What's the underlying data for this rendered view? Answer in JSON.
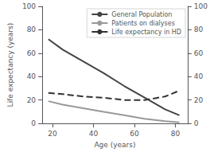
{
  "chart_data": {
    "type": "line",
    "x": [
      18,
      25,
      35,
      45,
      55,
      65,
      75,
      82
    ],
    "series": [
      {
        "name": "General Population",
        "color": "#444444",
        "line_style": "solid",
        "values": [
          72,
          63,
          53,
          43,
          32,
          22,
          12,
          7
        ]
      },
      {
        "name": "Patients on dialyses",
        "color": "#999999",
        "line_style": "solid",
        "values": [
          19,
          16,
          13,
          10,
          7,
          4,
          2,
          1
        ]
      },
      {
        "name": "Life expectancy in HD",
        "color": "#333333",
        "line_style": "dashed",
        "values": [
          26,
          25,
          23,
          22,
          20,
          20,
          23,
          28
        ]
      }
    ],
    "xlabel": "Age (years)",
    "ylabel": "Life expectancy (years)",
    "xlim": [
      15,
      86
    ],
    "xticks": [
      20,
      40,
      60,
      80
    ],
    "ylim": [
      0,
      100
    ],
    "yticks": [
      0,
      20,
      40,
      60,
      80,
      100
    ],
    "y2lim": [
      0,
      100
    ],
    "y2ticks": [
      0,
      20,
      40,
      60,
      80,
      100
    ],
    "legend": "upper right",
    "grid": false
  }
}
